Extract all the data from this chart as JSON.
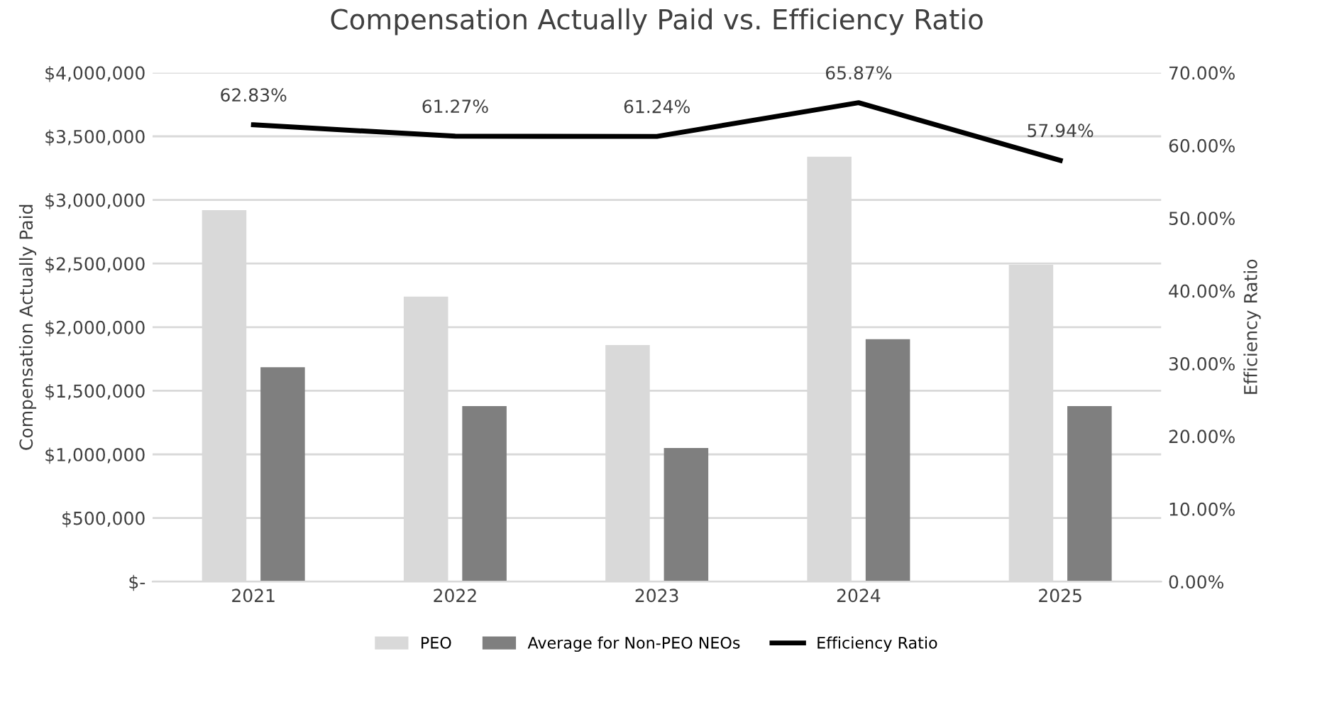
{
  "chart_data": {
    "type": "bar",
    "title": "Compensation Actually Paid vs. Efficiency Ratio",
    "ylabel": "Compensation Actually Paid",
    "y2label": "Efficiency Ratio",
    "categories": [
      "2021",
      "2022",
      "2023",
      "2024",
      "2025"
    ],
    "series": [
      {
        "name": "PEO",
        "color": "#d9d9d9",
        "values": [
          2920000,
          2240000,
          1860000,
          3340000,
          2490000
        ]
      },
      {
        "name": "Average for Non-PEO NEOs",
        "color": "#7f7f7f",
        "values": [
          1685000,
          1380000,
          1050000,
          1905000,
          1380000
        ]
      },
      {
        "name": "Efficiency Ratio",
        "type": "line",
        "axis": "y2",
        "color": "#000000",
        "values": [
          62.83,
          61.27,
          61.24,
          65.87,
          57.94
        ],
        "value_labels": [
          "62.83%",
          "61.27%",
          "61.24%",
          "65.87%",
          "57.94%"
        ]
      }
    ],
    "ylim": [
      0,
      4000000
    ],
    "yticks": [
      {
        "value": 0,
        "label": "$-"
      },
      {
        "value": 500000,
        "label": "$500,000"
      },
      {
        "value": 1000000,
        "label": "$1,000,000"
      },
      {
        "value": 1500000,
        "label": "$1,500,000"
      },
      {
        "value": 2000000,
        "label": "$2,000,000"
      },
      {
        "value": 2500000,
        "label": "$2,500,000"
      },
      {
        "value": 3000000,
        "label": "$3,000,000"
      },
      {
        "value": 3500000,
        "label": "$3,500,000"
      },
      {
        "value": 4000000,
        "label": "$4,000,000"
      }
    ],
    "y2lim": [
      0,
      70
    ],
    "y2ticks": [
      {
        "value": 0,
        "label": "0.00%"
      },
      {
        "value": 10,
        "label": "10.00%"
      },
      {
        "value": 20,
        "label": "20.00%"
      },
      {
        "value": 30,
        "label": "30.00%"
      },
      {
        "value": 40,
        "label": "40.00%"
      },
      {
        "value": 50,
        "label": "50.00%"
      },
      {
        "value": 60,
        "label": "60.00%"
      },
      {
        "value": 70,
        "label": "70.00%"
      }
    ],
    "grid": "y",
    "legend": "bottom"
  }
}
